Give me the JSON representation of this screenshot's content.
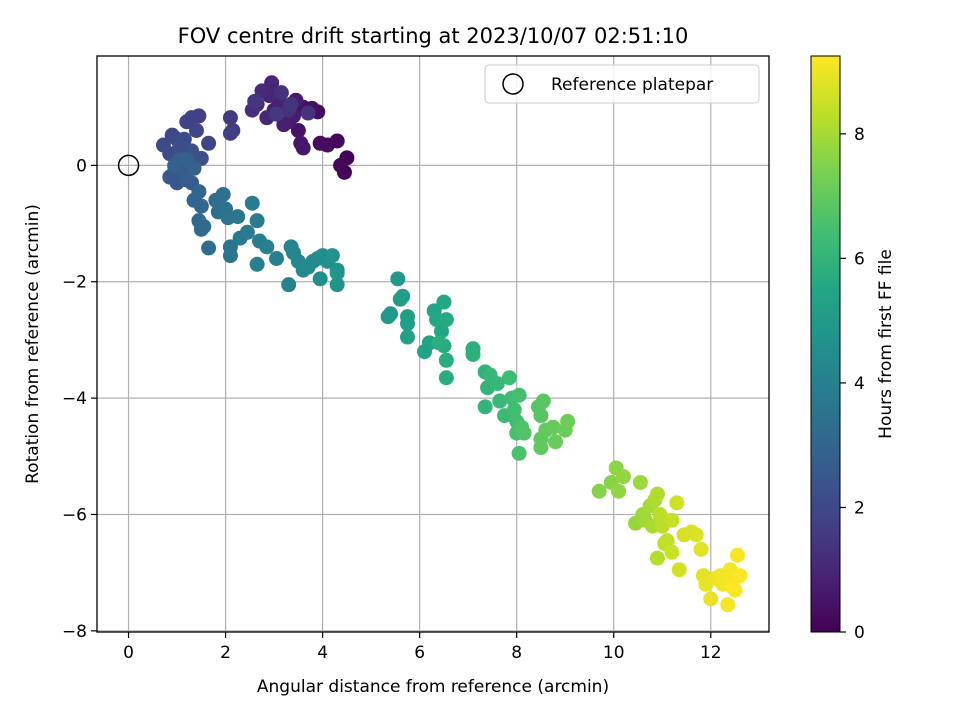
{
  "chart_data": {
    "type": "scatter",
    "title": "FOV centre drift starting at 2023/10/07 02:51:10",
    "xlabel": "Angular distance from reference (arcmin)",
    "ylabel": "Rotation from reference (arcmin)",
    "xlim": [
      -0.65,
      13.2
    ],
    "ylim": [
      -8.02,
      1.88
    ],
    "xticks": [
      0,
      2,
      4,
      6,
      8,
      10,
      12
    ],
    "yticks": [
      0,
      -2,
      -4,
      -6,
      -8
    ],
    "xtick_labels": [
      "0",
      "2",
      "4",
      "6",
      "8",
      "10",
      "12"
    ],
    "ytick_labels": [
      "0",
      "−2",
      "−4",
      "−6",
      "−8"
    ],
    "grid": true,
    "legend": {
      "position": "top-right",
      "label": "Reference platepar"
    },
    "colorbar": {
      "label": "Hours from first FF file",
      "range": [
        0,
        9.25
      ],
      "ticks": [
        0,
        2,
        4,
        6,
        8
      ],
      "tick_labels": [
        "0",
        "2",
        "4",
        "6",
        "8"
      ],
      "colormap": "viridis"
    },
    "reference_point": {
      "x": 0,
      "y": 0
    },
    "points": [
      {
        "x": 4.5,
        "y": 0.13,
        "h": 0.05
      },
      {
        "x": 4.45,
        "y": -0.12,
        "h": 0.1
      },
      {
        "x": 4.37,
        "y": 0.0,
        "h": 0.15
      },
      {
        "x": 4.3,
        "y": 0.42,
        "h": 0.2
      },
      {
        "x": 4.1,
        "y": 0.35,
        "h": 0.25
      },
      {
        "x": 3.95,
        "y": 0.38,
        "h": 0.3
      },
      {
        "x": 3.9,
        "y": 0.92,
        "h": 0.35
      },
      {
        "x": 3.78,
        "y": 0.98,
        "h": 0.4
      },
      {
        "x": 3.6,
        "y": 1.0,
        "h": 0.45
      },
      {
        "x": 3.5,
        "y": 0.6,
        "h": 0.5
      },
      {
        "x": 3.55,
        "y": 0.38,
        "h": 0.55
      },
      {
        "x": 3.6,
        "y": 0.3,
        "h": 0.6
      },
      {
        "x": 3.45,
        "y": 1.12,
        "h": 0.65
      },
      {
        "x": 3.4,
        "y": 0.85,
        "h": 0.7
      },
      {
        "x": 3.3,
        "y": 0.75,
        "h": 0.75
      },
      {
        "x": 3.2,
        "y": 0.7,
        "h": 0.8
      },
      {
        "x": 3.1,
        "y": 1.1,
        "h": 0.85
      },
      {
        "x": 3.0,
        "y": 0.95,
        "h": 0.9
      },
      {
        "x": 2.95,
        "y": 1.42,
        "h": 0.95
      },
      {
        "x": 2.9,
        "y": 1.2,
        "h": 1.0
      },
      {
        "x": 2.85,
        "y": 0.82,
        "h": 1.05
      },
      {
        "x": 2.75,
        "y": 1.28,
        "h": 1.1
      },
      {
        "x": 2.65,
        "y": 1.05,
        "h": 1.15
      },
      {
        "x": 2.55,
        "y": 0.95,
        "h": 1.2
      },
      {
        "x": 3.3,
        "y": 0.95,
        "h": 1.25
      },
      {
        "x": 3.15,
        "y": 1.25,
        "h": 1.3
      },
      {
        "x": 3.7,
        "y": 0.9,
        "h": 1.35
      },
      {
        "x": 3.35,
        "y": 1.05,
        "h": 1.4
      },
      {
        "x": 2.6,
        "y": 1.1,
        "h": 1.45
      },
      {
        "x": 3.05,
        "y": 0.88,
        "h": 1.5
      },
      {
        "x": 2.1,
        "y": 0.82,
        "h": 1.55
      },
      {
        "x": 2.15,
        "y": 0.6,
        "h": 1.6
      },
      {
        "x": 2.1,
        "y": 0.55,
        "h": 1.65
      },
      {
        "x": 1.45,
        "y": 0.85,
        "h": 1.7
      },
      {
        "x": 1.3,
        "y": 0.82,
        "h": 1.75
      },
      {
        "x": 1.2,
        "y": 0.75,
        "h": 1.8
      },
      {
        "x": 1.4,
        "y": 0.6,
        "h": 1.85
      },
      {
        "x": 1.65,
        "y": 0.38,
        "h": 1.9
      },
      {
        "x": 1.0,
        "y": 0.45,
        "h": 1.95
      },
      {
        "x": 0.9,
        "y": 0.52,
        "h": 2.0
      },
      {
        "x": 0.72,
        "y": 0.35,
        "h": 2.05
      },
      {
        "x": 0.85,
        "y": 0.2,
        "h": 2.1
      },
      {
        "x": 1.05,
        "y": 0.3,
        "h": 2.15
      },
      {
        "x": 1.15,
        "y": 0.45,
        "h": 2.2
      },
      {
        "x": 1.3,
        "y": 0.25,
        "h": 2.25
      },
      {
        "x": 1.5,
        "y": 0.12,
        "h": 2.3
      },
      {
        "x": 1.25,
        "y": 0.05,
        "h": 2.35
      },
      {
        "x": 1.1,
        "y": -0.05,
        "h": 2.4
      },
      {
        "x": 0.95,
        "y": -0.1,
        "h": 2.45
      },
      {
        "x": 0.85,
        "y": -0.2,
        "h": 2.5
      },
      {
        "x": 1.0,
        "y": -0.3,
        "h": 2.55
      },
      {
        "x": 1.15,
        "y": -0.15,
        "h": 2.6
      },
      {
        "x": 1.3,
        "y": -0.3,
        "h": 2.65
      },
      {
        "x": 1.2,
        "y": -0.25,
        "h": 2.7
      },
      {
        "x": 1.05,
        "y": 0.1,
        "h": 2.75
      },
      {
        "x": 0.95,
        "y": 0.0,
        "h": 2.8
      },
      {
        "x": 1.2,
        "y": 0.1,
        "h": 2.85
      },
      {
        "x": 1.35,
        "y": -0.05,
        "h": 2.9
      },
      {
        "x": 1.45,
        "y": -0.45,
        "h": 2.95
      },
      {
        "x": 1.35,
        "y": -0.6,
        "h": 3.0
      },
      {
        "x": 1.5,
        "y": -0.7,
        "h": 3.05
      },
      {
        "x": 1.45,
        "y": -0.95,
        "h": 3.1
      },
      {
        "x": 1.5,
        "y": -1.1,
        "h": 3.15
      },
      {
        "x": 1.55,
        "y": -1.05,
        "h": 3.2
      },
      {
        "x": 1.65,
        "y": -1.42,
        "h": 3.25
      },
      {
        "x": 1.8,
        "y": -0.6,
        "h": 3.3
      },
      {
        "x": 1.85,
        "y": -0.8,
        "h": 3.35
      },
      {
        "x": 1.95,
        "y": -0.5,
        "h": 3.4
      },
      {
        "x": 2.0,
        "y": -0.75,
        "h": 3.45
      },
      {
        "x": 2.05,
        "y": -0.9,
        "h": 3.5
      },
      {
        "x": 2.1,
        "y": -1.4,
        "h": 3.55
      },
      {
        "x": 2.1,
        "y": -1.55,
        "h": 3.6
      },
      {
        "x": 2.25,
        "y": -0.88,
        "h": 3.65
      },
      {
        "x": 2.3,
        "y": -1.25,
        "h": 3.7
      },
      {
        "x": 2.45,
        "y": -1.15,
        "h": 3.75
      },
      {
        "x": 2.55,
        "y": -0.65,
        "h": 3.8
      },
      {
        "x": 2.65,
        "y": -0.95,
        "h": 3.85
      },
      {
        "x": 2.7,
        "y": -1.3,
        "h": 3.9
      },
      {
        "x": 2.65,
        "y": -1.7,
        "h": 3.95
      },
      {
        "x": 2.85,
        "y": -1.4,
        "h": 4.0
      },
      {
        "x": 3.05,
        "y": -1.6,
        "h": 4.05
      },
      {
        "x": 3.3,
        "y": -2.05,
        "h": 4.1
      },
      {
        "x": 3.35,
        "y": -1.4,
        "h": 4.15
      },
      {
        "x": 3.4,
        "y": -1.5,
        "h": 4.2
      },
      {
        "x": 3.5,
        "y": -1.65,
        "h": 4.25
      },
      {
        "x": 3.6,
        "y": -1.8,
        "h": 4.3
      },
      {
        "x": 3.7,
        "y": -1.75,
        "h": 4.35
      },
      {
        "x": 3.8,
        "y": -1.65,
        "h": 4.4
      },
      {
        "x": 3.9,
        "y": -1.6,
        "h": 4.45
      },
      {
        "x": 3.95,
        "y": -1.95,
        "h": 4.5
      },
      {
        "x": 4.0,
        "y": -1.55,
        "h": 4.55
      },
      {
        "x": 4.1,
        "y": -1.65,
        "h": 4.6
      },
      {
        "x": 4.2,
        "y": -1.55,
        "h": 4.65
      },
      {
        "x": 4.3,
        "y": -1.8,
        "h": 4.7
      },
      {
        "x": 4.3,
        "y": -2.05,
        "h": 4.75
      },
      {
        "x": 4.3,
        "y": -1.85,
        "h": 4.8
      },
      {
        "x": 5.35,
        "y": -2.6,
        "h": 4.9
      },
      {
        "x": 5.4,
        "y": -2.55,
        "h": 4.95
      },
      {
        "x": 5.55,
        "y": -1.95,
        "h": 5.0
      },
      {
        "x": 5.6,
        "y": -2.3,
        "h": 5.05
      },
      {
        "x": 5.65,
        "y": -2.25,
        "h": 5.1
      },
      {
        "x": 5.75,
        "y": -2.6,
        "h": 5.15
      },
      {
        "x": 5.75,
        "y": -2.72,
        "h": 5.2
      },
      {
        "x": 5.75,
        "y": -2.95,
        "h": 5.25
      },
      {
        "x": 6.1,
        "y": -3.2,
        "h": 5.3
      },
      {
        "x": 6.2,
        "y": -3.05,
        "h": 5.35
      },
      {
        "x": 6.3,
        "y": -2.5,
        "h": 5.4
      },
      {
        "x": 6.35,
        "y": -2.65,
        "h": 5.45
      },
      {
        "x": 6.45,
        "y": -2.85,
        "h": 5.5
      },
      {
        "x": 6.5,
        "y": -2.35,
        "h": 5.55
      },
      {
        "x": 6.55,
        "y": -2.65,
        "h": 5.6
      },
      {
        "x": 6.5,
        "y": -3.1,
        "h": 5.65
      },
      {
        "x": 6.55,
        "y": -3.35,
        "h": 5.7
      },
      {
        "x": 6.55,
        "y": -3.65,
        "h": 5.75
      },
      {
        "x": 6.4,
        "y": -3.05,
        "h": 5.8
      },
      {
        "x": 7.1,
        "y": -3.15,
        "h": 5.85
      },
      {
        "x": 7.1,
        "y": -3.25,
        "h": 5.9
      },
      {
        "x": 7.35,
        "y": -3.55,
        "h": 5.95
      },
      {
        "x": 7.4,
        "y": -3.82,
        "h": 6.0
      },
      {
        "x": 7.35,
        "y": -4.15,
        "h": 6.05
      },
      {
        "x": 7.45,
        "y": -3.6,
        "h": 6.1
      },
      {
        "x": 7.6,
        "y": -3.75,
        "h": 6.15
      },
      {
        "x": 7.65,
        "y": -4.05,
        "h": 6.2
      },
      {
        "x": 7.75,
        "y": -4.3,
        "h": 6.25
      },
      {
        "x": 7.85,
        "y": -3.65,
        "h": 6.3
      },
      {
        "x": 7.9,
        "y": -4.0,
        "h": 6.35
      },
      {
        "x": 7.95,
        "y": -4.2,
        "h": 6.4
      },
      {
        "x": 8.0,
        "y": -4.4,
        "h": 6.45
      },
      {
        "x": 8.05,
        "y": -3.95,
        "h": 6.5
      },
      {
        "x": 8.0,
        "y": -4.6,
        "h": 6.55
      },
      {
        "x": 8.05,
        "y": -4.95,
        "h": 6.6
      },
      {
        "x": 8.1,
        "y": -4.5,
        "h": 6.65
      },
      {
        "x": 8.15,
        "y": -4.6,
        "h": 6.7
      },
      {
        "x": 8.45,
        "y": -4.15,
        "h": 6.75
      },
      {
        "x": 8.5,
        "y": -4.3,
        "h": 6.8
      },
      {
        "x": 8.55,
        "y": -4.05,
        "h": 6.85
      },
      {
        "x": 8.5,
        "y": -4.7,
        "h": 6.9
      },
      {
        "x": 8.5,
        "y": -4.85,
        "h": 6.95
      },
      {
        "x": 8.6,
        "y": -4.55,
        "h": 7.0
      },
      {
        "x": 8.75,
        "y": -4.5,
        "h": 7.05
      },
      {
        "x": 8.8,
        "y": -4.75,
        "h": 7.1
      },
      {
        "x": 9.0,
        "y": -4.55,
        "h": 7.15
      },
      {
        "x": 9.05,
        "y": -4.4,
        "h": 7.2
      },
      {
        "x": 9.7,
        "y": -5.6,
        "h": 7.55
      },
      {
        "x": 9.95,
        "y": -5.45,
        "h": 7.6
      },
      {
        "x": 10.05,
        "y": -5.2,
        "h": 7.65
      },
      {
        "x": 10.1,
        "y": -5.6,
        "h": 7.7
      },
      {
        "x": 10.2,
        "y": -5.35,
        "h": 7.75
      },
      {
        "x": 10.45,
        "y": -6.15,
        "h": 7.8
      },
      {
        "x": 10.55,
        "y": -5.45,
        "h": 7.85
      },
      {
        "x": 10.6,
        "y": -6.0,
        "h": 7.9
      },
      {
        "x": 10.65,
        "y": -6.1,
        "h": 7.95
      },
      {
        "x": 10.75,
        "y": -5.85,
        "h": 8.0
      },
      {
        "x": 10.8,
        "y": -6.2,
        "h": 8.05
      },
      {
        "x": 10.85,
        "y": -5.75,
        "h": 8.1
      },
      {
        "x": 10.9,
        "y": -5.65,
        "h": 8.15
      },
      {
        "x": 10.9,
        "y": -6.75,
        "h": 8.2
      },
      {
        "x": 10.95,
        "y": -6.0,
        "h": 8.25
      },
      {
        "x": 11.0,
        "y": -6.2,
        "h": 8.3
      },
      {
        "x": 11.05,
        "y": -6.5,
        "h": 8.35
      },
      {
        "x": 11.1,
        "y": -6.45,
        "h": 8.4
      },
      {
        "x": 11.2,
        "y": -6.1,
        "h": 8.45
      },
      {
        "x": 11.2,
        "y": -6.65,
        "h": 8.5
      },
      {
        "x": 11.3,
        "y": -5.8,
        "h": 8.55
      },
      {
        "x": 11.35,
        "y": -6.95,
        "h": 8.6
      },
      {
        "x": 11.45,
        "y": -6.35,
        "h": 8.65
      },
      {
        "x": 11.6,
        "y": -6.3,
        "h": 8.7
      },
      {
        "x": 11.7,
        "y": -6.35,
        "h": 8.75
      },
      {
        "x": 11.8,
        "y": -6.6,
        "h": 8.8
      },
      {
        "x": 11.85,
        "y": -7.05,
        "h": 8.85
      },
      {
        "x": 11.9,
        "y": -7.2,
        "h": 8.9
      },
      {
        "x": 12.0,
        "y": -7.45,
        "h": 8.95
      },
      {
        "x": 12.1,
        "y": -7.1,
        "h": 9.0
      },
      {
        "x": 12.2,
        "y": -7.05,
        "h": 9.05
      },
      {
        "x": 12.25,
        "y": -7.2,
        "h": 9.08
      },
      {
        "x": 12.35,
        "y": -7.55,
        "h": 9.1
      },
      {
        "x": 12.4,
        "y": -6.95,
        "h": 9.12
      },
      {
        "x": 12.45,
        "y": -7.15,
        "h": 9.14
      },
      {
        "x": 12.5,
        "y": -7.3,
        "h": 9.16
      },
      {
        "x": 12.55,
        "y": -6.7,
        "h": 9.18
      },
      {
        "x": 12.6,
        "y": -7.05,
        "h": 9.2
      },
      {
        "x": 12.45,
        "y": -7.25,
        "h": 9.22
      }
    ]
  }
}
